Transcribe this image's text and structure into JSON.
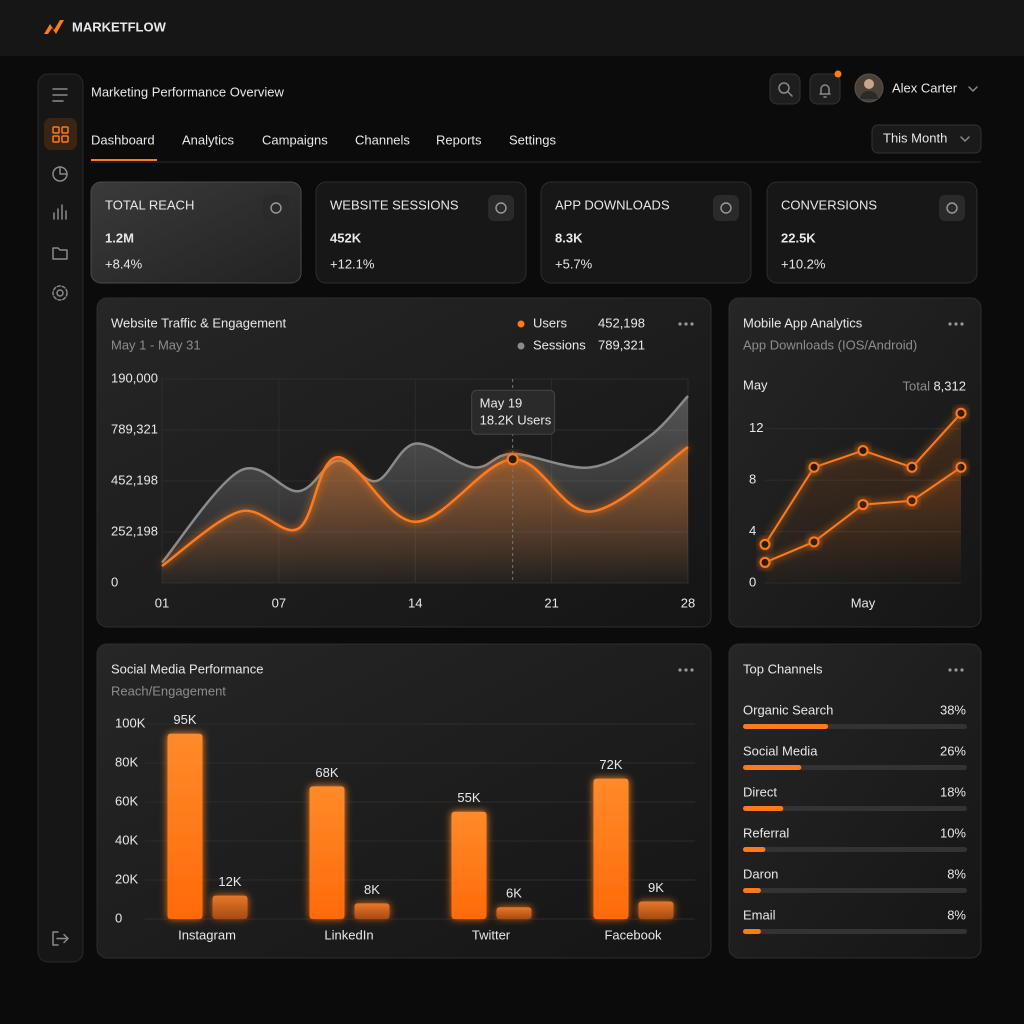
{
  "brand": "MARKETFLOW",
  "header": {
    "title": "Marketing Performance Overview",
    "user": "Alex Carter",
    "period": "This Month"
  },
  "tabs": [
    "Dashboard",
    "Analytics",
    "Campaigns",
    "Channels",
    "Reports",
    "Settings"
  ],
  "kpis": [
    {
      "label": "TOTAL REACH",
      "value": "1.2M",
      "change": "+8.4%"
    },
    {
      "label": "WEBSITE SESSIONS",
      "value": "452K",
      "change": "+12.1%"
    },
    {
      "label": "APP DOWNLOADS",
      "value": "8.3K",
      "change": "+5.7%"
    },
    {
      "label": "CONVERSIONS",
      "value": "22.5K",
      "change": "+10.2%"
    }
  ],
  "chart_data": [
    {
      "type": "line",
      "title": "Website Traffic & Engagement",
      "subtitle": "May 1 - May 31",
      "xlim": [
        1,
        28
      ],
      "xticks": [
        {
          "value": 1,
          "label": "01"
        },
        {
          "value": 7,
          "label": "07"
        },
        14,
        21,
        28
      ],
      "ylim": [
        0,
        30
      ],
      "yticks": [
        0,
        {
          "value": 7.5,
          "label": "252,198"
        },
        {
          "value": 15,
          "label": "452,198"
        },
        {
          "value": 22.5,
          "label": "789,321"
        },
        {
          "value": 30,
          "label": "190,000"
        }
      ],
      "grid": true,
      "smooth": true,
      "series": [
        {
          "name": "Users",
          "color": "#ff7a1a",
          "total": "452,198",
          "x": [
            1,
            5,
            8,
            10,
            14,
            19,
            23,
            28
          ],
          "values": [
            2.5,
            10.5,
            8,
            18.5,
            9,
            18.2,
            10.5,
            20
          ]
        },
        {
          "name": "Sessions",
          "color": "#8a8a8a",
          "total": "789,321",
          "x": [
            1,
            5,
            8,
            10,
            12,
            14,
            17,
            19,
            23,
            26,
            28
          ],
          "values": [
            3,
            16.5,
            13.5,
            18,
            15,
            20.5,
            17,
            19,
            17,
            21.5,
            27.5
          ]
        }
      ],
      "tooltip": {
        "series": 0,
        "point": 5,
        "title": "May 19",
        "text": "18.2K Users"
      }
    },
    {
      "type": "line",
      "title": "Mobile App Analytics",
      "subtitle": "App Downloads (IOS/Android)",
      "period": "May",
      "total_label": "Total",
      "total": "8,312",
      "categories": [
        null,
        null,
        "May",
        null,
        null
      ],
      "ylim": [
        0,
        14
      ],
      "yticks": [
        0,
        4,
        8,
        12
      ],
      "grid": true,
      "smooth": false,
      "series": [
        {
          "color": "#ff7a1a",
          "values": [
            3,
            9,
            10.3,
            9,
            13.2
          ]
        },
        {
          "color": "#ff7a1a",
          "values": [
            1.6,
            3.2,
            6.1,
            6.4,
            9
          ]
        }
      ]
    },
    {
      "type": "bar",
      "title": "Social Media Performance",
      "subtitle": "Reach/Engagement",
      "categories": [
        "Instagram",
        "LinkedIn",
        "Twitter",
        "Facebook"
      ],
      "ylim": [
        0,
        100
      ],
      "yticks": [
        0,
        {
          "value": 20,
          "label": "20K"
        },
        {
          "value": 40,
          "label": "40K"
        },
        {
          "value": 60,
          "label": "60K"
        },
        {
          "value": 80,
          "label": "80K"
        },
        {
          "value": 100,
          "label": "100K"
        }
      ],
      "grid": true,
      "series": [
        {
          "color": "#ff7a1a",
          "values": [
            95,
            68,
            55,
            72
          ],
          "value_labels": [
            "95K",
            "68K",
            "55K",
            "72K"
          ]
        },
        {
          "color": "#d9651c",
          "values": [
            12,
            8,
            6,
            9
          ],
          "value_labels": [
            "12K",
            "8K",
            "6K",
            "9K"
          ]
        }
      ]
    },
    {
      "type": "hbar",
      "title": "Top Channels",
      "categories": [
        "Organic Search",
        "Social Media",
        "Direct",
        "Referral",
        "Daron",
        "Email"
      ],
      "values": [
        38,
        26,
        18,
        10,
        8,
        8
      ],
      "value_labels": [
        "38%",
        "26%",
        "18%",
        "10%",
        "8%",
        "8%"
      ],
      "xlim": [
        0,
        100
      ],
      "color": "#ff7a1a"
    }
  ]
}
